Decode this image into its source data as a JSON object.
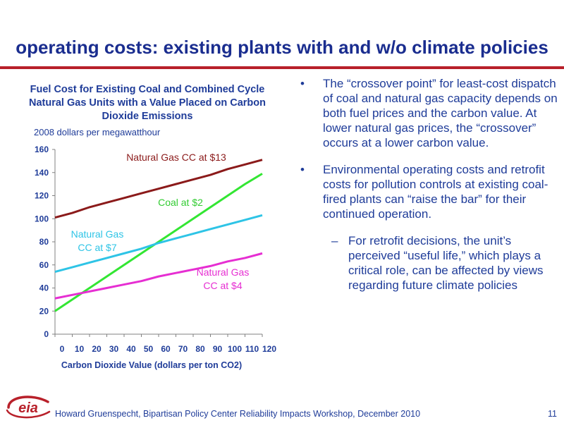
{
  "slide": {
    "title": "operating costs:  existing plants with and w/o climate policies",
    "footer": "Howard Gruenspecht, Bipartisan Policy Center Reliability Impacts Workshop, December 2010",
    "page_number": "11",
    "logo_text": "eia"
  },
  "chart_data": {
    "type": "line",
    "title": "Fuel Cost for Existing Coal and Combined Cycle Natural Gas Units with a Value Placed on Carbon Dioxide Emissions",
    "units_label": "2008 dollars per megawatthour",
    "xlabel": "Carbon Dioxide Value (dollars per ton CO2)",
    "ylabel": "",
    "xlim": [
      0,
      120
    ],
    "ylim": [
      0,
      160
    ],
    "x_ticks": [
      0,
      10,
      20,
      30,
      40,
      50,
      60,
      70,
      80,
      90,
      100,
      110,
      120
    ],
    "x_tick_labels": [
      "0",
      "10",
      "20",
      "30",
      "40",
      "50",
      "60",
      "70",
      "80",
      "90",
      "100",
      "110",
      "120"
    ],
    "y_ticks": [
      0,
      20,
      40,
      60,
      80,
      100,
      120,
      140,
      160
    ],
    "y_tick_labels": [
      "0",
      "20",
      "40",
      "60",
      "80",
      "100",
      "120",
      "140",
      "160"
    ],
    "grid": false,
    "legend": "inline labels",
    "x": [
      0,
      10,
      20,
      30,
      40,
      50,
      60,
      70,
      80,
      90,
      100,
      110,
      120
    ],
    "series": [
      {
        "name": "Natural Gas CC at $13",
        "color": "#8b1a1a",
        "values": [
          101,
          105,
          110,
          114,
          118,
          122,
          126,
          130,
          134,
          138,
          143,
          147,
          151
        ]
      },
      {
        "name": "Coal at $2",
        "color": "#33e633",
        "values": [
          20,
          30,
          40,
          50,
          60,
          70,
          80,
          90,
          100,
          110,
          120,
          130,
          139
        ]
      },
      {
        "name": "Natural Gas CC at $7",
        "color": "#2ec4e6",
        "values": [
          54,
          58,
          62,
          66,
          70,
          74,
          79,
          83,
          87,
          91,
          95,
          99,
          103
        ]
      },
      {
        "name": "Natural Gas CC at $4",
        "color": "#e62ed2",
        "values": [
          31,
          34,
          37,
          40,
          43,
          46,
          50,
          53,
          56,
          59,
          63,
          66,
          70
        ]
      }
    ],
    "annotations": [
      {
        "lines": [
          "Natural Gas CC at $13"
        ],
        "color": "#8b1a1a",
        "series": 0
      },
      {
        "lines": [
          "Coal at $2"
        ],
        "color": "#33cc33",
        "series": 1
      },
      {
        "lines": [
          "Natural Gas",
          "CC at $7"
        ],
        "color": "#2ec4e6",
        "series": 2
      },
      {
        "lines": [
          "Natural Gas",
          "CC at $4"
        ],
        "color": "#e62ed2",
        "series": 3
      }
    ]
  },
  "bullets": [
    {
      "text": "The “crossover point” for least-cost dispatch of coal and natural gas capacity depends on both fuel prices and the carbon value.  At lower natural gas prices, the “crossover”  occurs at a lower carbon value."
    },
    {
      "text": "Environmental operating costs and retrofit costs for pollution controls at existing coal-fired plants can “raise the bar” for their continued operation.",
      "sub": "For retrofit decisions, the unit’s perceived “useful life,” which plays a critical role, can be affected by views regarding future climate policies"
    }
  ],
  "bullet_marks": {
    "dot": "•",
    "dash": "–"
  }
}
